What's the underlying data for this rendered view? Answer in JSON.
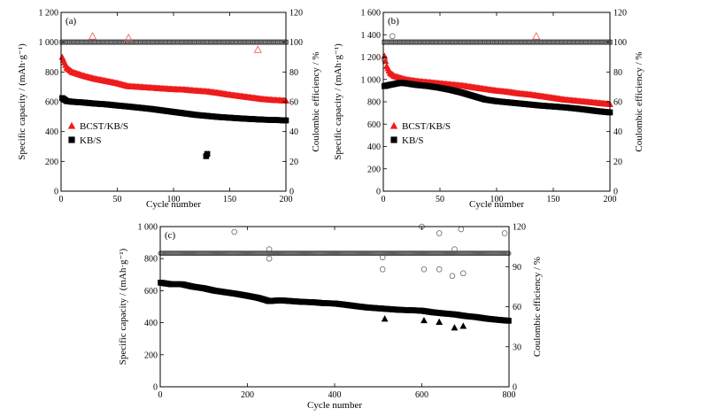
{
  "colors": {
    "bcst": "#ee1c1c",
    "kb": "#000000",
    "ce_kb": "#555555",
    "ce_bcst": "#ee5555"
  },
  "chart_data": [
    {
      "type": "scatter",
      "panel_label": "(a)",
      "xlabel": "Cycle number",
      "ylabel": "Specific capacity / (mAh·g⁻¹)",
      "y2label": "Coulombic efficiency / %",
      "xlim": [
        0,
        200
      ],
      "ylim": [
        0,
        1200
      ],
      "y2lim": [
        0,
        120
      ],
      "xticks": [
        0,
        50,
        100,
        150,
        200
      ],
      "xtick_labels": [
        "0",
        "50",
        "100",
        "150",
        "200"
      ],
      "yticks": [
        0,
        200,
        400,
        600,
        800,
        1000,
        1200
      ],
      "ytick_labels": [
        "0",
        "200",
        "400",
        "600",
        "800",
        "1 000",
        "1 200"
      ],
      "y2ticks": [
        0,
        20,
        40,
        60,
        80,
        100,
        120
      ],
      "y2tick_labels": [
        "0",
        "20",
        "40",
        "60",
        "80",
        "100",
        "120"
      ],
      "legend": {
        "placement": "lower-left",
        "items": [
          {
            "label": "BCST/KB/S",
            "marker": "triangle",
            "color": "#ee1c1c"
          },
          {
            "label": "KB/S",
            "marker": "square",
            "color": "#000000"
          }
        ]
      },
      "series": [
        {
          "name": "BCST/KB/S",
          "axis": "left",
          "marker": "triangle",
          "color": "#ee1c1c",
          "x": [
            1,
            5,
            10,
            20,
            30,
            40,
            50,
            60,
            70,
            80,
            90,
            100,
            110,
            120,
            130,
            140,
            150,
            160,
            170,
            180,
            190,
            200
          ],
          "y": [
            900,
            830,
            800,
            775,
            755,
            740,
            725,
            705,
            700,
            695,
            690,
            685,
            682,
            675,
            670,
            660,
            648,
            638,
            628,
            618,
            612,
            608
          ]
        },
        {
          "name": "KB/S",
          "axis": "left",
          "marker": "square",
          "color": "#000000",
          "x": [
            1,
            5,
            10,
            20,
            30,
            40,
            50,
            60,
            70,
            80,
            90,
            100,
            110,
            120,
            130,
            140,
            150,
            160,
            170,
            180,
            190,
            200
          ],
          "y": [
            625,
            605,
            600,
            595,
            588,
            583,
            575,
            568,
            560,
            552,
            542,
            532,
            522,
            512,
            505,
            498,
            493,
            488,
            484,
            480,
            478,
            475
          ]
        },
        {
          "axis": "right",
          "marker": "circle-open",
          "color": "#555555",
          "x_range": [
            1,
            200
          ],
          "y": 100
        },
        {
          "axis": "right",
          "marker": "square-open",
          "color": "#555555",
          "x_range": [
            1,
            200
          ],
          "y": 100
        },
        {
          "axis": "left",
          "marker": "square",
          "color": "#000000",
          "x": [
            129,
            130
          ],
          "y": [
            235,
            250
          ]
        },
        {
          "axis": "right",
          "marker": "triangle-open",
          "color": "#ee5555",
          "x": [
            28,
            60,
            175
          ],
          "y": [
            104,
            103,
            95
          ]
        }
      ]
    },
    {
      "type": "scatter",
      "panel_label": "(b)",
      "xlabel": "Cycle number",
      "ylabel": "Specific capacity / (mAh·g⁻¹)",
      "y2label": "Coulombic efficiency / %",
      "xlim": [
        0,
        200
      ],
      "ylim": [
        0,
        1600
      ],
      "y2lim": [
        0,
        120
      ],
      "xticks": [
        0,
        50,
        100,
        150,
        200
      ],
      "xtick_labels": [
        "0",
        "50",
        "100",
        "150",
        "200"
      ],
      "yticks": [
        0,
        200,
        400,
        600,
        800,
        1000,
        1200,
        1400,
        1600
      ],
      "ytick_labels": [
        "0",
        "200",
        "400",
        "600",
        "800",
        "1 000",
        "1 200",
        "1 400",
        "1 600"
      ],
      "y2ticks": [
        0,
        20,
        40,
        60,
        80,
        100,
        120
      ],
      "y2tick_labels": [
        "0",
        "20",
        "40",
        "60",
        "80",
        "100",
        "120"
      ],
      "legend": {
        "placement": "lower-left",
        "items": [
          {
            "label": "BCST/KB/S",
            "marker": "triangle",
            "color": "#ee1c1c"
          },
          {
            "label": "KB/S",
            "marker": "square",
            "color": "#000000"
          }
        ]
      },
      "series": [
        {
          "name": "BCST/KB/S",
          "axis": "left",
          "marker": "triangle",
          "color": "#ee1c1c",
          "x": [
            1,
            3,
            6,
            10,
            20,
            30,
            40,
            50,
            60,
            70,
            80,
            90,
            100,
            110,
            120,
            130,
            140,
            150,
            160,
            170,
            180,
            190,
            200
          ],
          "y": [
            1210,
            1120,
            1060,
            1030,
            1000,
            985,
            975,
            965,
            955,
            945,
            930,
            915,
            900,
            890,
            875,
            865,
            850,
            835,
            820,
            810,
            800,
            790,
            780
          ]
        },
        {
          "name": "KB/S",
          "axis": "left",
          "marker": "square",
          "color": "#000000",
          "x": [
            1,
            5,
            10,
            15,
            20,
            30,
            40,
            50,
            60,
            70,
            80,
            90,
            100,
            110,
            120,
            130,
            140,
            150,
            160,
            170,
            180,
            190,
            200
          ],
          "y": [
            940,
            950,
            960,
            970,
            965,
            950,
            940,
            925,
            905,
            880,
            850,
            820,
            805,
            795,
            785,
            775,
            765,
            758,
            750,
            740,
            728,
            715,
            705
          ]
        },
        {
          "axis": "right",
          "marker": "circle-open",
          "color": "#555555",
          "x_range": [
            1,
            200
          ],
          "y": 100
        },
        {
          "axis": "right",
          "marker": "square-open",
          "color": "#555555",
          "x_range": [
            1,
            200
          ],
          "y": 100
        },
        {
          "axis": "right",
          "marker": "circle-open",
          "color": "#555555",
          "x": [
            1,
            8
          ],
          "y": [
            88,
            104
          ]
        },
        {
          "axis": "right",
          "marker": "triangle-open",
          "color": "#ee5555",
          "x": [
            135
          ],
          "y": [
            104
          ]
        }
      ]
    },
    {
      "type": "scatter",
      "panel_label": "(c)",
      "xlabel": "Cycle number",
      "ylabel": "Specific capacity / (mAh·g⁻¹)",
      "y2label": "Coulombic efficiency / %",
      "xlim": [
        0,
        800
      ],
      "ylim": [
        0,
        1000
      ],
      "y2lim": [
        0,
        120
      ],
      "xticks": [
        0,
        200,
        400,
        600,
        800
      ],
      "xtick_labels": [
        "0",
        "200",
        "400",
        "600",
        "800"
      ],
      "yticks": [
        0,
        200,
        400,
        600,
        800,
        1000
      ],
      "ytick_labels": [
        "0",
        "200",
        "400",
        "600",
        "800",
        "1 000"
      ],
      "y2ticks": [
        0,
        30,
        60,
        90,
        120
      ],
      "y2tick_labels": [
        "0",
        "30",
        "60",
        "90",
        "120"
      ],
      "series": [
        {
          "axis": "left",
          "marker": "square",
          "color": "#000000",
          "x": [
            1,
            25,
            50,
            75,
            100,
            125,
            150,
            175,
            200,
            225,
            250,
            275,
            300,
            325,
            350,
            375,
            400,
            425,
            450,
            475,
            500,
            525,
            550,
            575,
            600,
            625,
            650,
            675,
            700,
            725,
            750,
            775,
            800
          ],
          "y": [
            650,
            640,
            640,
            625,
            615,
            600,
            590,
            580,
            568,
            555,
            535,
            540,
            535,
            530,
            528,
            522,
            520,
            512,
            503,
            495,
            490,
            485,
            480,
            478,
            475,
            465,
            458,
            452,
            442,
            435,
            425,
            418,
            412
          ]
        },
        {
          "axis": "left",
          "marker": "triangle",
          "color": "#000000",
          "x": [
            250,
            515,
            605,
            640,
            675,
            695
          ],
          "y": [
            535,
            425,
            415,
            405,
            370,
            380
          ]
        },
        {
          "axis": "right",
          "marker": "circle-open",
          "color": "#555555",
          "x_range": [
            1,
            800
          ],
          "y": 100
        },
        {
          "axis": "right",
          "marker": "circle-open",
          "color": "#555555",
          "x": [
            170,
            250,
            250,
            510,
            510,
            600,
            605,
            640,
            640,
            670,
            675,
            690,
            695,
            790
          ],
          "y": [
            116,
            103,
            96,
            97,
            88,
            120,
            88,
            115,
            88,
            83,
            103,
            118,
            85,
            115
          ]
        }
      ]
    }
  ]
}
